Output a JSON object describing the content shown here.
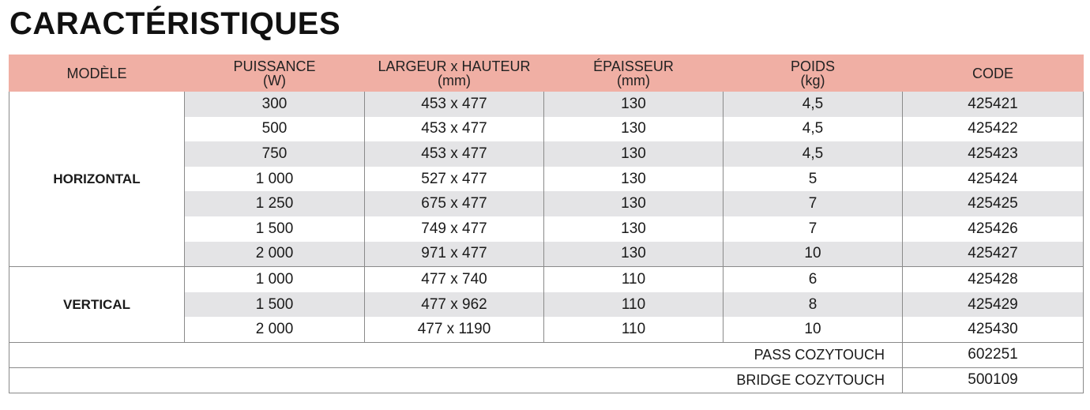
{
  "title": "CARACTÉRISTIQUES",
  "headers": [
    {
      "line1": "MODÈLE",
      "line2": ""
    },
    {
      "line1": "PUISSANCE",
      "line2": "(W)"
    },
    {
      "line1": "LARGEUR x HAUTEUR",
      "line2": "(mm)"
    },
    {
      "line1": "ÉPAISSEUR",
      "line2": "(mm)"
    },
    {
      "line1": "POIDS",
      "line2": "(kg)"
    },
    {
      "line1": "CODE",
      "line2": ""
    }
  ],
  "groups": [
    {
      "model": "HORIZONTAL",
      "rows": [
        {
          "power": "300",
          "size": "453 x 477",
          "thickness": "130",
          "weight": "4,5",
          "code": "425421"
        },
        {
          "power": "500",
          "size": "453 x 477",
          "thickness": "130",
          "weight": "4,5",
          "code": "425422"
        },
        {
          "power": "750",
          "size": "453 x 477",
          "thickness": "130",
          "weight": "4,5",
          "code": "425423"
        },
        {
          "power": "1 000",
          "size": "527 x 477",
          "thickness": "130",
          "weight": "5",
          "code": "425424"
        },
        {
          "power": "1 250",
          "size": "675 x 477",
          "thickness": "130",
          "weight": "7",
          "code": "425425"
        },
        {
          "power": "1 500",
          "size": "749 x 477",
          "thickness": "130",
          "weight": "7",
          "code": "425426"
        },
        {
          "power": "2 000",
          "size": "971 x 477",
          "thickness": "130",
          "weight": "10",
          "code": "425427"
        }
      ]
    },
    {
      "model": "VERTICAL",
      "rows": [
        {
          "power": "1 000",
          "size": "477 x 740",
          "thickness": "110",
          "weight": "6",
          "code": "425428"
        },
        {
          "power": "1 500",
          "size": "477 x 962",
          "thickness": "110",
          "weight": "8",
          "code": "425429"
        },
        {
          "power": "2 000",
          "size": "477 x 1190",
          "thickness": "110",
          "weight": "10",
          "code": "425430"
        }
      ]
    }
  ],
  "accessories": [
    {
      "label": "PASS COZYTOUCH",
      "code": "602251"
    },
    {
      "label": "BRIDGE COZYTOUCH",
      "code": "500109"
    }
  ]
}
